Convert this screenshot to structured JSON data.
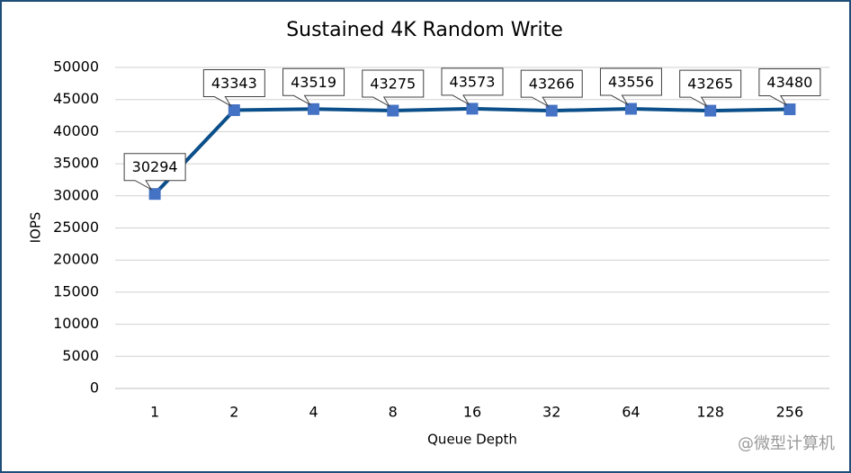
{
  "chart_data": {
    "type": "line",
    "title": "Sustained 4K Random Write",
    "x_label": "Queue Depth",
    "y_label": "IOPS",
    "categories": [
      "1",
      "2",
      "4",
      "8",
      "16",
      "32",
      "64",
      "128",
      "256"
    ],
    "series": [
      {
        "name": "IOPS",
        "color": "#0b4f8a",
        "marker_color": "#4472c4",
        "values": [
          30294,
          43343,
          43519,
          43275,
          43573,
          43266,
          43556,
          43265,
          43480
        ]
      }
    ],
    "ylim": [
      0,
      50000
    ],
    "yticks": [
      0,
      5000,
      10000,
      15000,
      20000,
      25000,
      30000,
      35000,
      40000,
      45000,
      50000
    ],
    "grid": true,
    "legend": false,
    "watermark": "@微型计算机"
  }
}
